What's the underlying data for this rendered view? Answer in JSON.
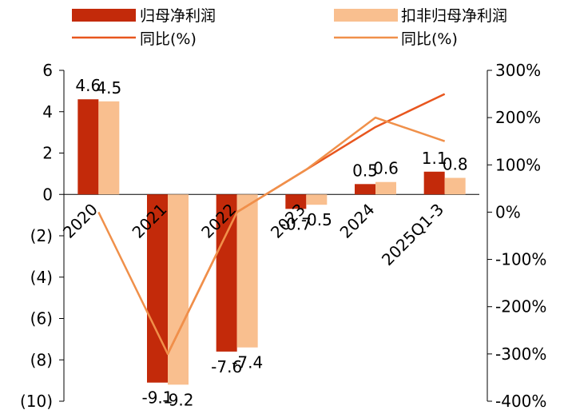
{
  "chart_data": {
    "type": "bar",
    "categories": [
      "2020",
      "2021",
      "2022",
      "2023",
      "2024",
      "2025Q1-3"
    ],
    "series": [
      {
        "name": "归母净利润",
        "type": "bar",
        "axis": "left",
        "color": "#C32A0A",
        "values": [
          4.6,
          -9.1,
          -7.6,
          -0.7,
          0.5,
          1.1
        ],
        "labels": [
          "4.6",
          "-9.1",
          "-7.6",
          "-0.7",
          "0.5",
          "1.1"
        ]
      },
      {
        "name": "扣非归母净利润",
        "type": "bar",
        "axis": "left",
        "color": "#F9BF8F",
        "values": [
          4.5,
          -9.2,
          -7.4,
          -0.5,
          0.6,
          0.8
        ],
        "labels": [
          "4.5",
          "-9.2",
          "-7.4",
          "-0.5",
          "0.6",
          "0.8"
        ]
      },
      {
        "name": "同比(%)",
        "type": "line",
        "axis": "right",
        "color": "#E8561E",
        "values": [
          null,
          -300,
          0,
          90,
          180,
          250
        ]
      },
      {
        "name": "同比(%)",
        "type": "line",
        "axis": "right",
        "color": "#F0904A",
        "values": [
          0,
          -300,
          0,
          90,
          200,
          150
        ]
      }
    ],
    "left_axis": {
      "ylim": [
        -10,
        6
      ],
      "ticks": [
        "6",
        "4",
        "2",
        "0",
        "(2)",
        "(4)",
        "(6)",
        "(8)",
        "(10)"
      ]
    },
    "right_axis": {
      "ylim": [
        -400,
        300
      ],
      "ticks": [
        "300%",
        "200%",
        "100%",
        "0%",
        "-100%",
        "-200%",
        "-300%",
        "-400%"
      ]
    },
    "legend_position": "top",
    "grid": false
  }
}
